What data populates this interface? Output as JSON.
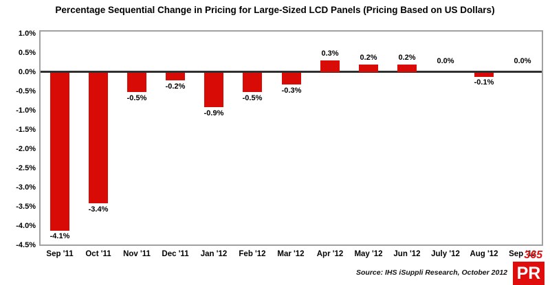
{
  "title": "Percentage Sequential Change in Pricing for Large-Sized LCD Panels (Pricing Based on US Dollars)",
  "source_note": "Source: IHS iSuppli Research, October 2012",
  "logo": {
    "top_text": "365",
    "box_text": "PR"
  },
  "colors": {
    "bar": "#d90b06",
    "zero_line": "#2f2f2f",
    "plot_border": "#a0a0a0",
    "logo_red": "#e00d0d",
    "text": "#000000"
  },
  "chart_data": {
    "type": "bar",
    "title": "Percentage Sequential Change in Pricing for Large-Sized LCD Panels (Pricing Based on US Dollars)",
    "categories": [
      "Sep '11",
      "Oct '11",
      "Nov '11",
      "Dec '11",
      "Jan '12",
      "Feb '12",
      "Mar '12",
      "Apr '12",
      "May '12",
      "Jun '12",
      "July '12",
      "Aug '12",
      "Sep '12"
    ],
    "values": [
      -4.1,
      -3.4,
      -0.5,
      -0.2,
      -0.9,
      -0.5,
      -0.3,
      0.3,
      0.2,
      0.2,
      0.0,
      -0.1,
      0.0
    ],
    "data_labels": [
      "-4.1%",
      "-3.4%",
      "-0.5%",
      "-0.2%",
      "-0.9%",
      "-0.5%",
      "-0.3%",
      "0.3%",
      "0.2%",
      "0.2%",
      "0.0%",
      "-0.1%",
      "0.0%"
    ],
    "y_ticks": [
      "1.0%",
      "0.5%",
      "0.0%",
      "-0.5%",
      "-1.0%",
      "-1.5%",
      "-2.0%",
      "-2.5%",
      "-3.0%",
      "-3.5%",
      "-4.0%",
      "-4.5%"
    ],
    "y_tick_values": [
      1.0,
      0.5,
      0.0,
      -0.5,
      -1.0,
      -1.5,
      -2.0,
      -2.5,
      -3.0,
      -3.5,
      -4.0,
      -4.5
    ],
    "ylim": [
      -4.5,
      1.0
    ],
    "xlabel": "",
    "ylabel": "",
    "grid": false,
    "legend": "none",
    "bar_color": "#d90b06"
  }
}
